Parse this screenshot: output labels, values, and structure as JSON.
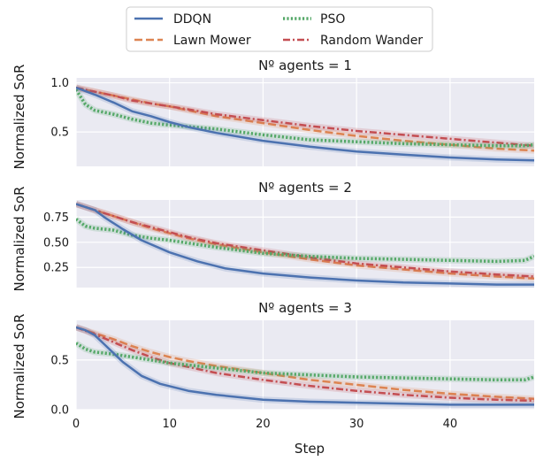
{
  "chart_data": {
    "type": "line",
    "x_label": "Step",
    "y_label": "Normalized SoR",
    "xlim": [
      0,
      49
    ],
    "x_ticks": [
      0,
      10,
      20,
      30,
      40
    ],
    "x_tick_labels": [
      "0",
      "10",
      "20",
      "30",
      "40"
    ],
    "grid": true,
    "legend": {
      "placement": "top-center",
      "entries": [
        {
          "name": "DDQN",
          "style": "solid",
          "color": "#4c72b0"
        },
        {
          "name": "Lawn Mower",
          "style": "dashed",
          "color": "#dd8452"
        },
        {
          "name": "PSO",
          "style": "dotted",
          "color": "#55a868"
        },
        {
          "name": "Random Wander",
          "style": "dashdot",
          "color": "#c44e52"
        }
      ]
    },
    "series_names": [
      "DDQN",
      "Lawn Mower",
      "PSO",
      "Random Wander"
    ],
    "panels": [
      {
        "title": "Nº agents = 1",
        "ylim": [
          0.15,
          1.05
        ],
        "y_ticks": [
          0.5,
          1.0
        ],
        "y_tick_labels": [
          "0.5",
          "1.0"
        ],
        "series": [
          {
            "name": "DDQN",
            "x": [
              0,
              2,
              4,
              6,
              8,
              10,
              12,
              15,
              20,
              25,
              30,
              35,
              40,
              45,
              49
            ],
            "y": [
              0.95,
              0.88,
              0.8,
              0.71,
              0.66,
              0.6,
              0.55,
              0.49,
              0.41,
              0.35,
              0.3,
              0.27,
              0.24,
              0.22,
              0.21
            ]
          },
          {
            "name": "Lawn Mower",
            "x": [
              0,
              2,
              4,
              6,
              8,
              10,
              12,
              15,
              20,
              25,
              30,
              35,
              40,
              45,
              49
            ],
            "y": [
              0.95,
              0.91,
              0.87,
              0.83,
              0.79,
              0.76,
              0.72,
              0.66,
              0.59,
              0.52,
              0.46,
              0.41,
              0.37,
              0.33,
              0.31
            ]
          },
          {
            "name": "PSO",
            "x": [
              0,
              1,
              2,
              4,
              6,
              8,
              10,
              15,
              20,
              25,
              30,
              35,
              40,
              45,
              48,
              49
            ],
            "y": [
              0.93,
              0.78,
              0.72,
              0.68,
              0.63,
              0.59,
              0.57,
              0.53,
              0.47,
              0.42,
              0.4,
              0.38,
              0.37,
              0.36,
              0.36,
              0.37
            ]
          },
          {
            "name": "Random Wander",
            "x": [
              0,
              2,
              4,
              6,
              8,
              10,
              12,
              15,
              20,
              25,
              30,
              35,
              40,
              45,
              49
            ],
            "y": [
              0.95,
              0.91,
              0.87,
              0.82,
              0.79,
              0.76,
              0.73,
              0.68,
              0.62,
              0.56,
              0.51,
              0.47,
              0.43,
              0.39,
              0.36
            ]
          }
        ]
      },
      {
        "title": "Nº agents = 2",
        "ylim": [
          0.05,
          0.92
        ],
        "y_ticks": [
          0.25,
          0.5,
          0.75
        ],
        "y_tick_labels": [
          "0.25",
          "0.50",
          "0.75"
        ],
        "series": [
          {
            "name": "DDQN",
            "x": [
              0,
              2,
              3,
              5,
              7,
              10,
              13,
              16,
              20,
              25,
              30,
              35,
              40,
              45,
              49
            ],
            "y": [
              0.88,
              0.82,
              0.75,
              0.63,
              0.52,
              0.4,
              0.31,
              0.24,
              0.19,
              0.15,
              0.12,
              0.1,
              0.09,
              0.08,
              0.08
            ]
          },
          {
            "name": "Lawn Mower",
            "x": [
              0,
              2,
              4,
              6,
              8,
              10,
              12,
              15,
              20,
              25,
              30,
              35,
              40,
              45,
              49
            ],
            "y": [
              0.88,
              0.82,
              0.76,
              0.7,
              0.64,
              0.59,
              0.54,
              0.48,
              0.4,
              0.33,
              0.27,
              0.23,
              0.19,
              0.16,
              0.14
            ]
          },
          {
            "name": "PSO",
            "x": [
              0,
              1,
              2,
              4,
              6,
              8,
              10,
              15,
              20,
              25,
              30,
              35,
              40,
              45,
              48,
              49
            ],
            "y": [
              0.73,
              0.66,
              0.64,
              0.62,
              0.57,
              0.54,
              0.52,
              0.45,
              0.39,
              0.36,
              0.34,
              0.33,
              0.32,
              0.31,
              0.32,
              0.36
            ]
          },
          {
            "name": "Random Wander",
            "x": [
              0,
              2,
              4,
              6,
              8,
              10,
              12,
              15,
              20,
              25,
              30,
              35,
              40,
              45,
              49
            ],
            "y": [
              0.88,
              0.82,
              0.76,
              0.7,
              0.65,
              0.6,
              0.55,
              0.49,
              0.42,
              0.35,
              0.29,
              0.25,
              0.21,
              0.18,
              0.16
            ]
          }
        ]
      },
      {
        "title": "Nº agents = 3",
        "ylim": [
          0.0,
          0.9
        ],
        "y_ticks": [
          0.0,
          0.5
        ],
        "y_tick_labels": [
          "0.0",
          "0.5"
        ],
        "series": [
          {
            "name": "DDQN",
            "x": [
              0,
              1,
              2,
              3,
              5,
              7,
              9,
              12,
              15,
              20,
              25,
              30,
              35,
              40,
              45,
              49
            ],
            "y": [
              0.83,
              0.8,
              0.75,
              0.66,
              0.48,
              0.34,
              0.26,
              0.19,
              0.15,
              0.1,
              0.08,
              0.07,
              0.06,
              0.05,
              0.05,
              0.05
            ]
          },
          {
            "name": "Lawn Mower",
            "x": [
              0,
              2,
              4,
              6,
              8,
              10,
              12,
              15,
              20,
              25,
              30,
              35,
              40,
              45,
              49
            ],
            "y": [
              0.83,
              0.77,
              0.71,
              0.64,
              0.58,
              0.53,
              0.49,
              0.44,
              0.37,
              0.3,
              0.25,
              0.2,
              0.16,
              0.13,
              0.11
            ]
          },
          {
            "name": "PSO",
            "x": [
              0,
              1,
              2,
              4,
              6,
              8,
              10,
              15,
              20,
              25,
              30,
              35,
              40,
              45,
              48,
              49
            ],
            "y": [
              0.67,
              0.61,
              0.58,
              0.56,
              0.53,
              0.5,
              0.47,
              0.42,
              0.37,
              0.35,
              0.33,
              0.32,
              0.31,
              0.3,
              0.3,
              0.33
            ]
          },
          {
            "name": "Random Wander",
            "x": [
              0,
              2,
              4,
              6,
              8,
              10,
              12,
              15,
              20,
              25,
              30,
              35,
              40,
              45,
              49
            ],
            "y": [
              0.83,
              0.76,
              0.68,
              0.6,
              0.53,
              0.47,
              0.43,
              0.37,
              0.3,
              0.24,
              0.19,
              0.15,
              0.12,
              0.1,
              0.09
            ]
          }
        ]
      }
    ]
  }
}
